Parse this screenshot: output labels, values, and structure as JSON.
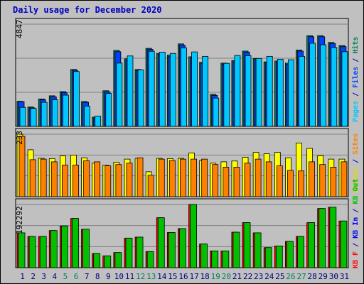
{
  "title": "Daily usage for December 2020",
  "panels": {
    "top": {
      "scale_label": "4847",
      "legend": [
        {
          "text": "Pages",
          "color": "#00c8ff"
        },
        {
          "text": " / ",
          "color": "#0000c0"
        },
        {
          "text": "Files",
          "color": "#0040ff"
        },
        {
          "text": " / ",
          "color": "#0000c0"
        },
        {
          "text": "Hits",
          "color": "#008060"
        }
      ]
    },
    "middle": {
      "scale_label": "233",
      "legend": [
        {
          "text": "Visits",
          "color": "#e8d800"
        },
        {
          "text": " / ",
          "color": "#0000c0"
        },
        {
          "text": "Sites",
          "color": "#ff8000"
        }
      ]
    },
    "bottom": {
      "scale_label": "192292",
      "legend": [
        {
          "text": "KB F",
          "color": "#ff0000"
        },
        {
          "text": " / ",
          "color": "#0000c0"
        },
        {
          "text": "KB In",
          "color": "#0000ff"
        },
        {
          "text": " / ",
          "color": "#0000c0"
        },
        {
          "text": "KB Out",
          "color": "#00c000"
        }
      ]
    }
  },
  "colors": {
    "background": "#c0c0c0",
    "hits": "#008060",
    "files": "#0040ff",
    "pages": "#00c8ff",
    "visits": "#ffff00",
    "sites": "#ff8000",
    "kbin": "#ff0000",
    "kbout": "#00c000",
    "title": "#0000c0",
    "weekday_label": "#000080",
    "weekend_label": "#008060"
  },
  "chart_data": [
    {
      "type": "bar",
      "title": "Daily usage for December 2020",
      "x": [
        1,
        2,
        3,
        4,
        5,
        6,
        7,
        8,
        9,
        10,
        11,
        12,
        13,
        14,
        15,
        16,
        17,
        18,
        19,
        20,
        21,
        22,
        23,
        24,
        25,
        26,
        27,
        28,
        29,
        30,
        31
      ],
      "weekend_days": [
        5,
        6,
        12,
        13,
        19,
        20,
        26,
        27
      ],
      "ylim": [
        0,
        4847
      ],
      "series": [
        {
          "name": "Hits",
          "values": [
            1190,
            920,
            1300,
            1450,
            1650,
            2700,
            1180,
            440,
            1690,
            3600,
            3200,
            2700,
            3700,
            3460,
            3380,
            3910,
            3300,
            3040,
            1520,
            3000,
            3120,
            3570,
            3220,
            3060,
            3100,
            3000,
            3620,
            4300,
            4300,
            3980,
            3830
          ]
        },
        {
          "name": "Files",
          "values": [
            1170,
            880,
            1270,
            1400,
            1600,
            2660,
            1140,
            400,
            1640,
            3540,
            3150,
            2650,
            3650,
            3410,
            3330,
            3850,
            3250,
            2990,
            1470,
            2950,
            3070,
            3520,
            3170,
            3010,
            3050,
            2950,
            3570,
            4250,
            4250,
            3930,
            3780
          ]
        },
        {
          "name": "Pages",
          "values": [
            900,
            850,
            1140,
            1260,
            1480,
            2600,
            960,
            490,
            1560,
            3000,
            3340,
            2680,
            3560,
            3520,
            3460,
            3720,
            3530,
            3320,
            1340,
            2990,
            3360,
            3350,
            3220,
            3320,
            3180,
            3160,
            3320,
            3940,
            3870,
            3740,
            3540
          ]
        }
      ]
    },
    {
      "type": "bar",
      "ylim": [
        0,
        233
      ],
      "series": [
        {
          "name": "Visits",
          "values": [
            233,
            175,
            143,
            142,
            152,
            155,
            145,
            125,
            117,
            128,
            140,
            143,
            93,
            143,
            142,
            143,
            163,
            135,
            125,
            130,
            133,
            147,
            165,
            160,
            165,
            145,
            200,
            180,
            153,
            140,
            140
          ]
        },
        {
          "name": "Sites",
          "values": [
            225,
            138,
            140,
            130,
            118,
            118,
            134,
            130,
            115,
            120,
            125,
            145,
            80,
            140,
            135,
            140,
            140,
            140,
            120,
            110,
            110,
            125,
            140,
            130,
            115,
            98,
            96,
            130,
            120,
            110,
            130
          ]
        }
      ]
    },
    {
      "type": "bar",
      "ylim": [
        0,
        192292
      ],
      "series": [
        {
          "name": "KB In",
          "values": [
            106000,
            95000,
            95000,
            113000,
            127000,
            150000,
            117000,
            43000,
            36000,
            46000,
            90000,
            93000,
            49000,
            152000,
            107000,
            119000,
            192292,
            72000,
            51000,
            51000,
            108000,
            137000,
            106000,
            61000,
            66000,
            80000,
            95000,
            137000,
            180000,
            184000,
            142000
          ]
        },
        {
          "name": "KB Out",
          "values": [
            106000,
            95000,
            95000,
            113000,
            127000,
            150000,
            117000,
            43000,
            36000,
            46000,
            90000,
            93000,
            49000,
            152000,
            107000,
            119000,
            192292,
            72000,
            51000,
            51000,
            108000,
            137000,
            106000,
            61000,
            66000,
            80000,
            95000,
            137000,
            180000,
            184000,
            142000
          ]
        }
      ]
    }
  ]
}
